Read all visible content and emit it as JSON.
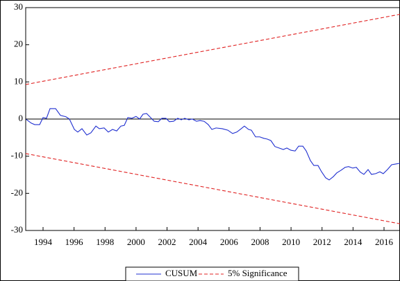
{
  "chart_data": {
    "type": "line",
    "xlim": [
      1992.88,
      2017.03
    ],
    "xticks": [
      1994,
      1996,
      1998,
      2000,
      2002,
      2004,
      2006,
      2008,
      2010,
      2012,
      2014,
      2016
    ],
    "ylim": [
      -30,
      30
    ],
    "yticks": [
      -30,
      -20,
      -10,
      0,
      10,
      20,
      30
    ],
    "zero_line": true,
    "legend": "bottom",
    "series": [
      {
        "name": "CUSUM",
        "color": "#1f2fd0",
        "line_style": "solid",
        "x": [
          1992.88,
          1993.24,
          1993.46,
          1993.78,
          1994.0,
          1994.22,
          1994.45,
          1994.81,
          1995.12,
          1995.48,
          1995.7,
          1996.02,
          1996.24,
          1996.51,
          1996.82,
          1997.09,
          1997.41,
          1997.63,
          1997.94,
          1998.21,
          1998.48,
          1998.75,
          1999.02,
          1999.24,
          1999.47,
          1999.73,
          2000.0,
          2000.23,
          2000.45,
          2000.68,
          2000.94,
          2001.17,
          2001.44,
          2001.66,
          2001.93,
          2002.15,
          2002.42,
          2002.69,
          2002.92,
          2003.14,
          2003.41,
          2003.63,
          2003.9,
          2004.13,
          2004.39,
          2004.66,
          2004.89,
          2005.16,
          2005.56,
          2005.92,
          2006.23,
          2006.5,
          2006.72,
          2006.99,
          2007.26,
          2007.44,
          2007.71,
          2007.98,
          2008.25,
          2008.47,
          2008.7,
          2008.96,
          2009.23,
          2009.5,
          2009.73,
          2009.99,
          2010.26,
          2010.49,
          2010.76,
          2010.98,
          2011.25,
          2011.47,
          2011.74,
          2011.97,
          2012.23,
          2012.46,
          2012.73,
          2012.95,
          2013.22,
          2013.49,
          2013.71,
          2013.98,
          2014.21,
          2014.47,
          2014.7,
          2014.97,
          2015.19,
          2015.46,
          2015.73,
          2015.95,
          2016.22,
          2016.49,
          2016.76,
          2017.03
        ],
        "values": [
          0,
          -1.1,
          -1.5,
          -1.5,
          0.4,
          0.2,
          2.8,
          2.8,
          1,
          0.6,
          0,
          -2.8,
          -3.5,
          -2.6,
          -4.3,
          -3.7,
          -1.9,
          -2.6,
          -2.4,
          -3.5,
          -2.8,
          -3.2,
          -1.9,
          -1.7,
          0.4,
          0.2,
          0.7,
          0,
          1.3,
          1.5,
          0.4,
          -0.6,
          -0.7,
          0.2,
          0.2,
          -0.7,
          -0.6,
          0.2,
          -0.2,
          0.2,
          -0.2,
          0,
          -0.6,
          -0.4,
          -0.6,
          -1.5,
          -2.8,
          -2.4,
          -2.6,
          -3,
          -3.9,
          -3.5,
          -2.8,
          -1.9,
          -2.8,
          -3,
          -4.8,
          -4.8,
          -5.2,
          -5.4,
          -5.8,
          -7.4,
          -7.8,
          -8.2,
          -7.8,
          -8.4,
          -8.6,
          -7.3,
          -7.3,
          -8.6,
          -11.2,
          -12.5,
          -12.5,
          -14.2,
          -15.8,
          -16.4,
          -15.5,
          -14.5,
          -13.8,
          -13,
          -12.8,
          -13.2,
          -13,
          -14.3,
          -14.9,
          -13.6,
          -14.9,
          -14.7,
          -14.2,
          -14.7,
          -13.6,
          -12.3,
          -12.1,
          -11.9
        ]
      },
      {
        "name": "5% Significance",
        "color": "#e02020",
        "line_style": "dashed",
        "x": [
          1992.88,
          2017.03
        ],
        "upper": [
          9.3,
          28.2
        ],
        "lower": [
          -9.3,
          -28.2
        ]
      }
    ]
  }
}
